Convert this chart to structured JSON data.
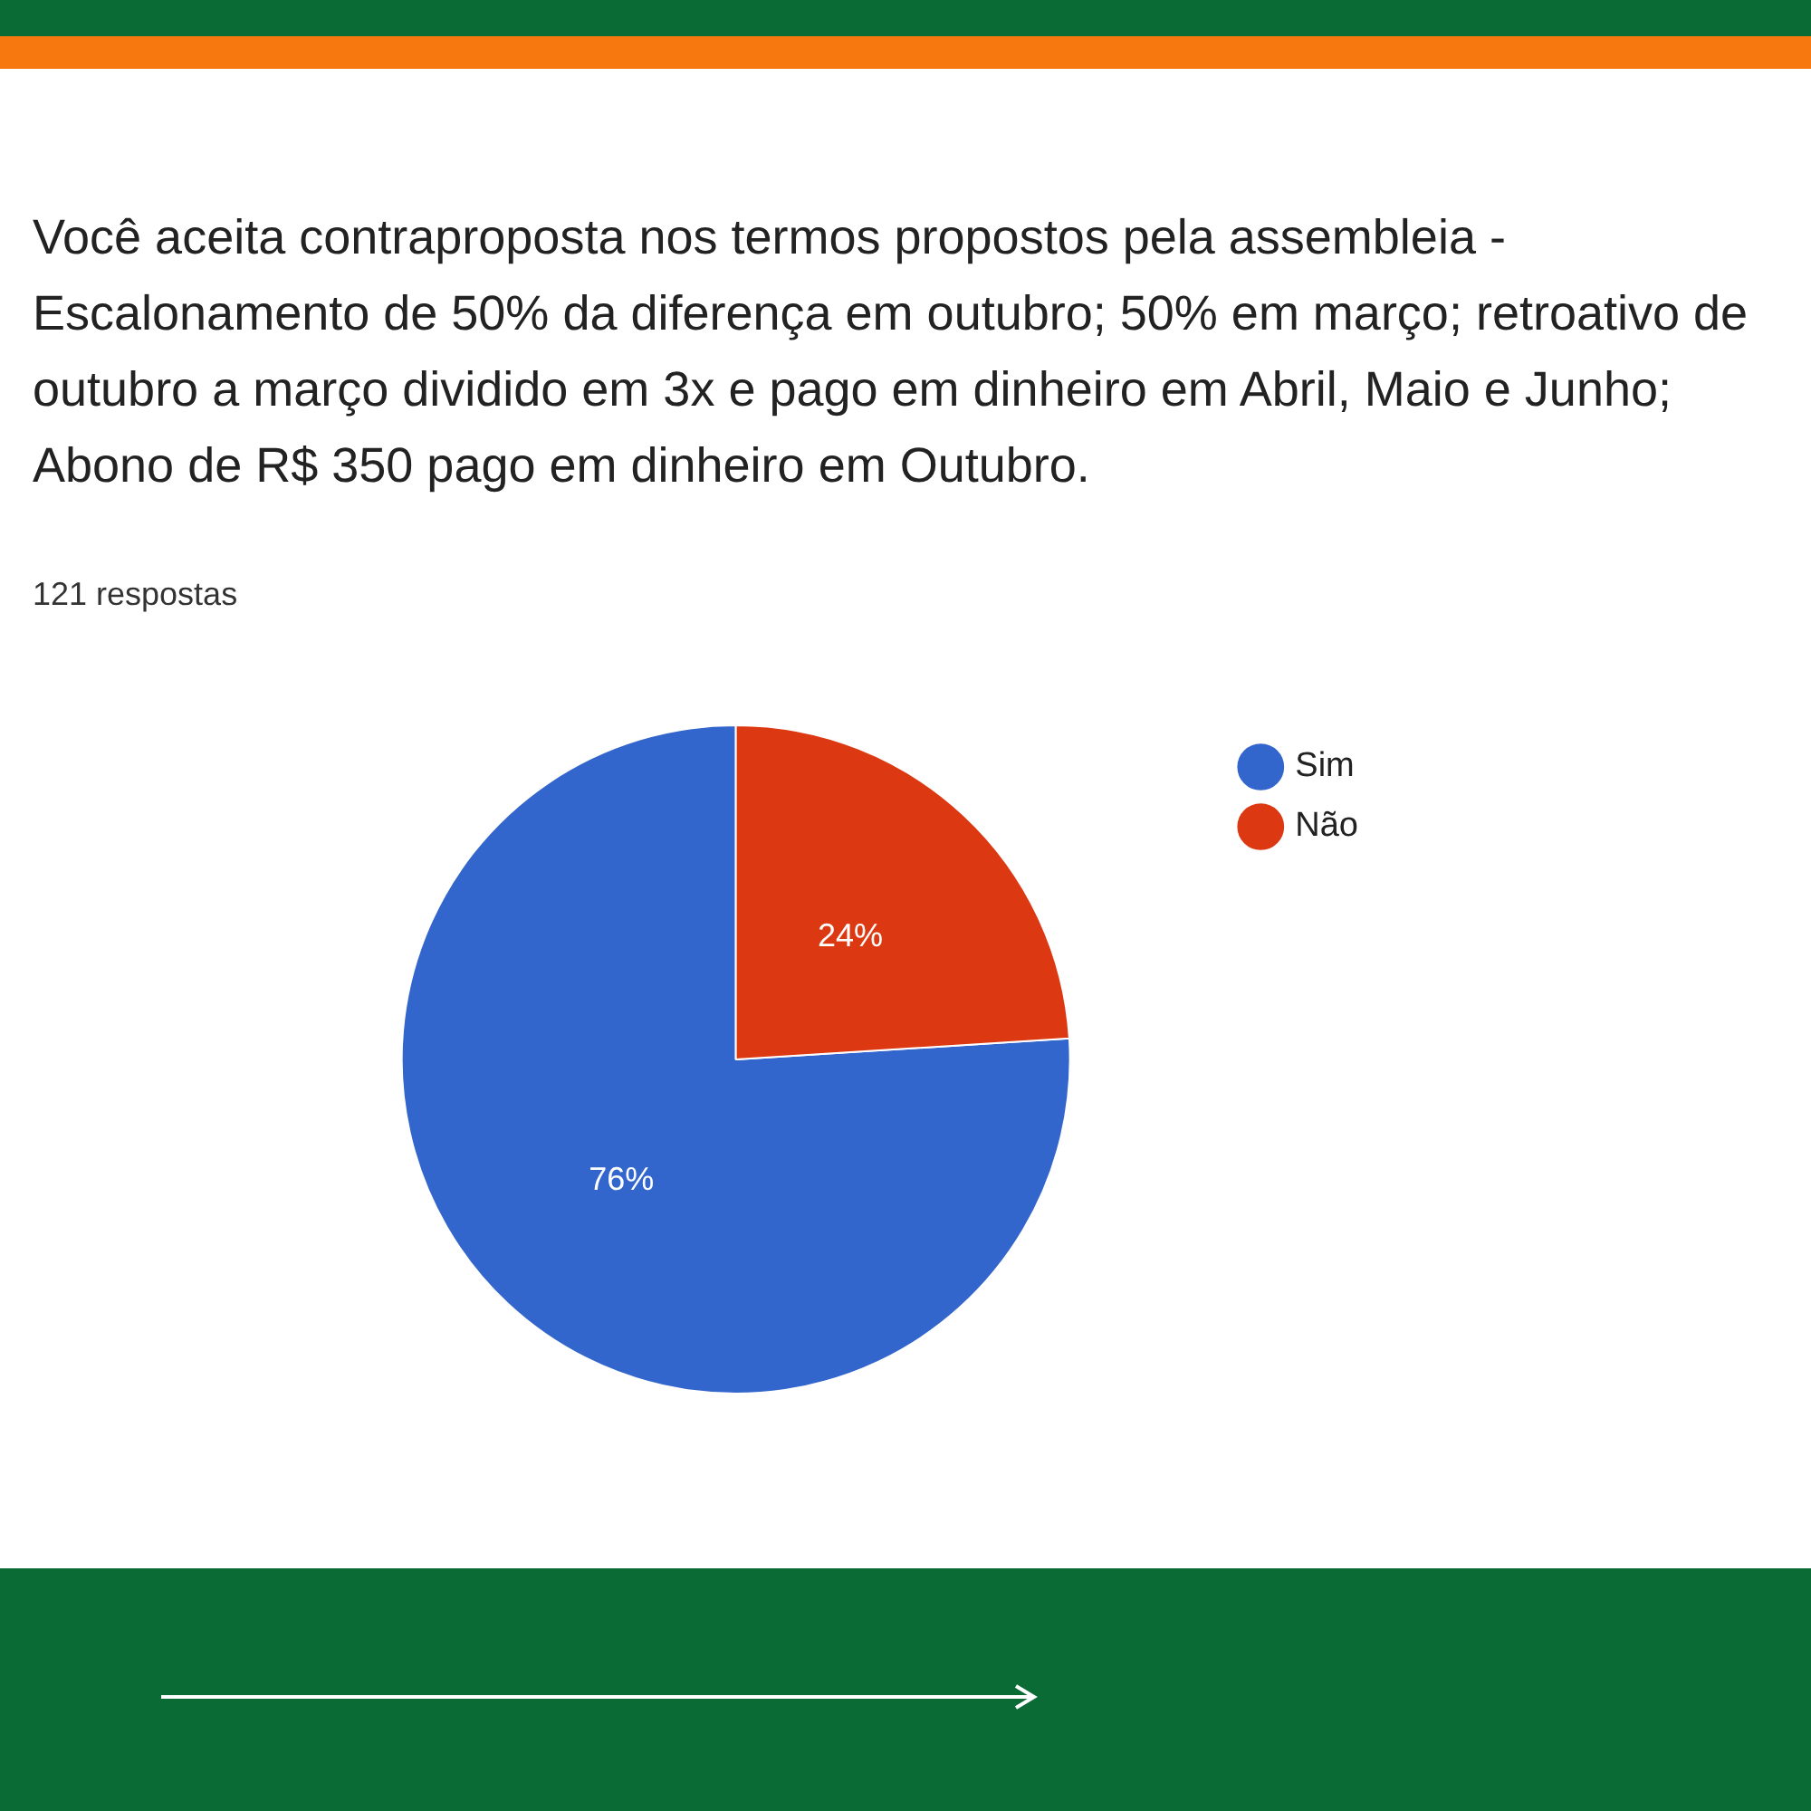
{
  "chart_data": {
    "type": "pie",
    "title": "Você aceita contraproposta nos termos propostos pela assembleia - Escalonamento de 50% da diferença em outubro; 50% em março; retroativo de outubro a março dividido em 3x e pago em dinheiro em Abril, Maio e Junho; Abono de R$ 350 pago em dinheiro em Outubro.",
    "subtitle": "121 respostas",
    "categories": [
      "Sim",
      "Não"
    ],
    "values": [
      76,
      24
    ],
    "colors": [
      "#3366cc",
      "#dc3912"
    ],
    "value_labels": [
      "76%",
      "24%"
    ],
    "legend": "top right"
  }
}
